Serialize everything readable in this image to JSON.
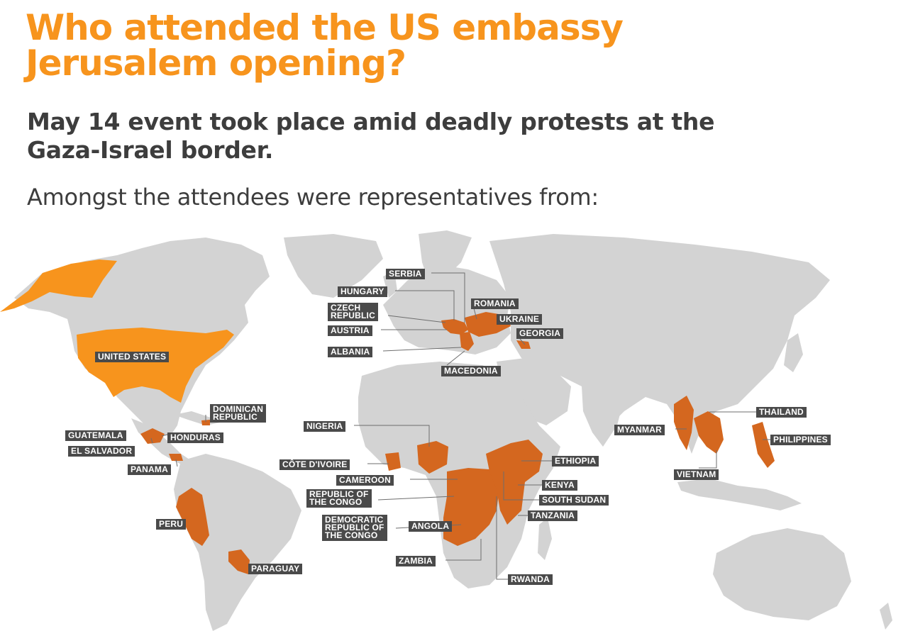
{
  "title_line1": "Who attended the US embassy",
  "title_line2": "Jerusalem opening?",
  "subtitle_line1": "May 14 event took place amid deadly protests at the",
  "subtitle_line2": "Gaza-Israel border.",
  "intro": "Amongst the attendees were representatives from:",
  "colors": {
    "title": "#f7941d",
    "text": "#3d3d3d",
    "land": "#d3d3d3",
    "country_highlight": "#d4671f",
    "us_highlight": "#f7941d",
    "label_bg": "#4a4a4a",
    "label_text": "#ffffff"
  },
  "countries": {
    "united_states": "UNITED STATES",
    "dominican_republic": "DOMINICAN\nREPUBLIC",
    "guatemala": "GUATEMALA",
    "honduras": "HONDURAS",
    "el_salvador": "EL SALVADOR",
    "panama": "PANAMA",
    "peru": "PERU",
    "paraguay": "PARAGUAY",
    "serbia": "SERBIA",
    "hungary": "HUNGARY",
    "czech_republic": "CZECH\nREPUBLIC",
    "austria": "AUSTRIA",
    "albania": "ALBANIA",
    "macedonia": "MACEDONIA",
    "romania": "ROMANIA",
    "ukraine": "UKRAINE",
    "georgia": "GEORGIA",
    "nigeria": "NIGERIA",
    "cote_divoire": "CÔTE D'IVOIRE",
    "cameroon": "CAMEROON",
    "republic_of_the_congo": "REPUBLIC OF\nTHE CONGO",
    "drc": "DEMOCRATIC\nREPUBLIC OF\nTHE CONGO",
    "angola": "ANGOLA",
    "zambia": "ZAMBIA",
    "rwanda": "RWANDA",
    "ethiopia": "ETHIOPIA",
    "kenya": "KENYA",
    "south_sudan": "SOUTH SUDAN",
    "tanzania": "TANZANIA",
    "myanmar": "MYANMAR",
    "thailand": "THAILAND",
    "philippines": "PHILIPPINES",
    "vietnam": "VIETNAM"
  }
}
